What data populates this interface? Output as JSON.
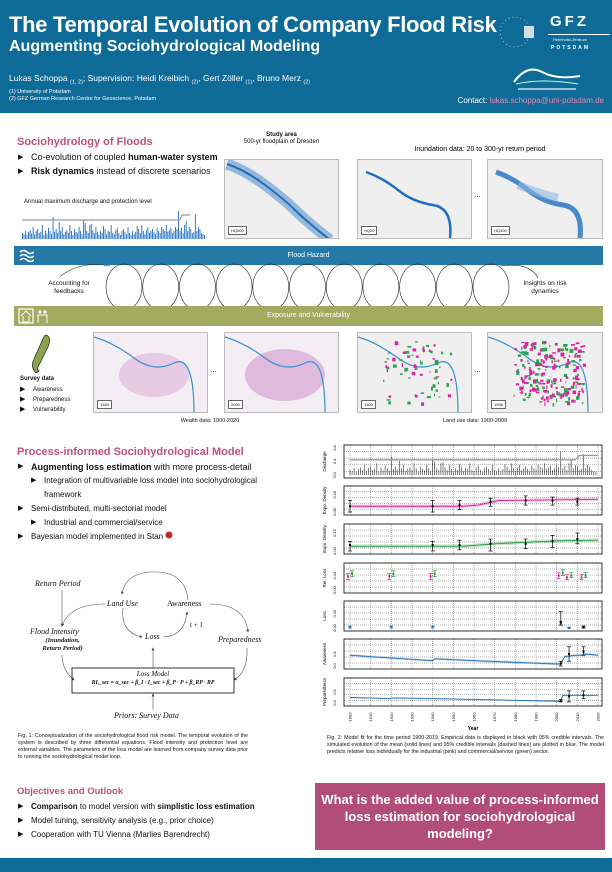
{
  "header": {
    "title": "The Temporal Evolution of Company Flood Risk",
    "subtitle": "Augmenting Sociohydrological Modeling",
    "authors": [
      {
        "name": "Lukas Schoppa",
        "aff": "(1, 2)"
      },
      {
        "name": "Heidi Kreibich",
        "aff": "(2)"
      },
      {
        "name": "Gert Zöller",
        "aff": "(1)"
      },
      {
        "name": "Bruno Merz",
        "aff": "(2)"
      }
    ],
    "supervision_label": "Supervision:",
    "affiliations": [
      "(1) University of Potsdam",
      "(2) GFZ German Research Centre for Geoscience, Potsdam"
    ],
    "contact_label": "Contact:",
    "contact_email": "lukas.schoppa@uni-potsdam.de",
    "logos": {
      "gfz": "GFZ",
      "gfz_sub1": "Helmholtz-Zentrum",
      "gfz_sub2": "POTSDAM"
    }
  },
  "section1": {
    "title": "Sociohydrology of Floods",
    "bullets": [
      {
        "pre": "Co-evolution of coupled ",
        "bold": "human-water system",
        "post": ""
      },
      {
        "pre": "",
        "bold": "Risk dynamics",
        "post": " instead of discrete scenarios"
      }
    ],
    "chart_label": "Annual maximum discharge and protection level",
    "study_area_title": "Study area",
    "study_area_sub": "500-yr floodplain of Dresden",
    "inundation_label": "Inundation data: 20 to 300-yr return period",
    "map_tags": [
      "HQ500",
      "HQ20",
      "HQ300"
    ],
    "ellipsis": "..."
  },
  "bands": {
    "hazard": "Flood Hazard",
    "exposure": "Exposure and Vulnerability",
    "left_note": "Accounting for feedbacks",
    "right_note": "Insights on risk dynamics"
  },
  "survey": {
    "title": "Survey data",
    "items": [
      "Awareness",
      "Preparedness",
      "Vulnerability"
    ]
  },
  "wealth": {
    "label": "Wealth data: 1900-2020",
    "tags": [
      "1940",
      "2000"
    ]
  },
  "landuse": {
    "label": "Land use data: 1900-2009",
    "tags": [
      "1900",
      "1998"
    ]
  },
  "section2": {
    "title": "Process-informed Sociohydrological Model",
    "bullets": [
      {
        "level": 0,
        "pre": "",
        "bold": "Augmenting loss estimation",
        "post": " with more process-detail"
      },
      {
        "level": 1,
        "pre": "Integration of multivariable loss model into sociohydrological framework",
        "bold": "",
        "post": ""
      },
      {
        "level": 0,
        "pre": "Semi-distributed, multi-sectorial model",
        "bold": "",
        "post": ""
      },
      {
        "level": 1,
        "pre": "Industrial and commercial/service",
        "bold": "",
        "post": ""
      },
      {
        "level": 0,
        "pre": "Bayesian model implemented in Stan",
        "bold": "",
        "post": ""
      }
    ]
  },
  "diagram": {
    "return_period": "Return Period",
    "land_use": "Land Use",
    "awareness": "Awareness",
    "t1": "t + 1",
    "flood_intensity": "Flood Intensity",
    "fi_sub1": "(Inundation,",
    "fi_sub2": "Return Period)",
    "loss": "Loss",
    "preparedness": "Preparedness",
    "loss_model": "Loss Model",
    "equation": "RL_sec = α_sec + β_I · I_sec + β_P · P + β_RP · RP",
    "priors": "Priors: Survey Data"
  },
  "fig1_caption": "Fig. 1: Conceptualization of the sociohydrological flood risk model. The temporal evolution of the system is described by three differential equations. Flood intensity and protection level are external variables. The parameters of the loss model are learned from company survey data prior to running the sociohydrological model loop.",
  "fig2_caption": "Fig. 2: Model fit for the time period 1900-2019. Empirical data is displayed in black with 95% credible intervals. The simulated evolution of the mean (solid lines) and 95% credible intervals (dashed lines) are plotted in blue. The model predicts relative loss individually for the industrial (pink) and commercial/service (green) sector.",
  "section3": {
    "title": "Objectives and Outlook",
    "bullets": [
      {
        "pre": "Comparison",
        "bold": "",
        "post": " to model version with ",
        "bold2": "simplistic loss estimation"
      },
      {
        "pre": "Model tuning, sensitivity analysis (e.g., prior choice)"
      },
      {
        "pre": "Cooperation with TU Vienna (Marlies Barendrecht)"
      }
    ]
  },
  "question": "What is the added value of process-informed loss estimation for sociohydrological modeling?",
  "colors": {
    "header": "#0e6a96",
    "accent": "#c0507f",
    "hazard": "#2479a6",
    "exposure": "#a2ab5f",
    "question": "#b24d7a",
    "industrial": "#d6249a",
    "commercial": "#1f9a3a",
    "model": "#1f6fc0"
  },
  "chart_data": {
    "type": "line",
    "xlabel": "Year",
    "xlim": [
      1900,
      2020
    ],
    "x_ticks": [
      1900,
      1910,
      1920,
      1930,
      1940,
      1950,
      1960,
      1970,
      1980,
      1990,
      2000,
      2010,
      2020
    ],
    "grid": true,
    "panels": [
      {
        "ylabel": "Discharge",
        "ylim": [
          0,
          0.8
        ],
        "yticks": [
          "0.0",
          "0.4",
          "0.8"
        ],
        "kind": "bars",
        "bars": [
          0.15,
          0.12,
          0.2,
          0.1,
          0.18,
          0.22,
          0.14,
          0.3,
          0.12,
          0.2,
          0.25,
          0.15,
          0.18,
          0.35,
          0.1,
          0.22,
          0.14,
          0.28,
          0.2,
          0.12,
          0.55,
          0.18,
          0.25,
          0.15,
          0.42,
          0.2,
          0.3,
          0.12,
          0.18,
          0.22,
          0.15,
          0.35,
          0.2,
          0.1,
          0.25,
          0.18,
          0.14,
          0.3,
          0.2,
          0.12,
          0.48,
          0.4,
          0.2,
          0.15,
          0.35,
          0.38,
          0.22,
          0.14,
          0.3,
          0.18,
          0.1,
          0.2,
          0.15,
          0.32,
          0.25,
          0.12,
          0.2,
          0.18,
          0.35,
          0.15,
          0.12,
          0.22,
          0.28,
          0.15,
          0.1,
          0.2,
          0.25,
          0.18,
          0.12,
          0.3,
          0.15,
          0.1,
          0.2,
          0.12,
          0.18,
          0.32,
          0.25,
          0.15,
          0.35,
          0.2,
          0.12,
          0.22,
          0.3,
          0.15,
          0.2,
          0.25,
          0.18,
          0.12,
          0.28,
          0.2,
          0.15,
          0.3,
          0.25,
          0.2,
          0.35,
          0.18,
          0.22,
          0.28,
          0.15,
          0.2,
          0.3,
          0.25,
          0.7,
          0.2,
          0.28,
          0.15,
          0.35,
          0.45,
          0.2,
          0.3,
          0.25,
          0.15,
          0.18,
          0.62,
          0.2,
          0.3,
          0.25,
          0.15,
          0.12,
          0.1
        ],
        "protection": [
          [
            1900,
            0.45
          ],
          [
            2009,
            0.45
          ],
          [
            2011,
            0.58
          ],
          [
            2020,
            0.58
          ]
        ]
      },
      {
        "ylabel": "Expo. Density",
        "ylim": [
          0,
          0.2
        ],
        "yticks": [
          "0.00",
          "0.15"
        ],
        "kind": "lines",
        "lines": [
          {
            "color": "#d6249a",
            "band": 0.015,
            "pts": [
              [
                1900,
                0.05
              ],
              [
                1955,
                0.05
              ],
              [
                1962,
                0.06
              ],
              [
                1972,
                0.1
              ],
              [
                2020,
                0.11
              ]
            ]
          }
        ],
        "obs": [
          {
            "color": "#000",
            "pts": [
              [
                1900,
                0.05,
                0.0,
                0.1
              ],
              [
                1940,
                0.05,
                0.0,
                0.1
              ],
              [
                1953,
                0.06,
                0.02,
                0.1
              ],
              [
                1968,
                0.09,
                0.05,
                0.12
              ],
              [
                1985,
                0.1,
                0.06,
                0.14
              ],
              [
                1998,
                0.1,
                0.06,
                0.13
              ],
              [
                2010,
                0.09,
                0.06,
                0.12
              ]
            ]
          }
        ]
      },
      {
        "ylabel": "Expo. Density",
        "ylim": [
          0,
          0.2
        ],
        "yticks": [
          "0.00",
          "0.15"
        ],
        "kind": "lines",
        "lines": [
          {
            "color": "#1f9a3a",
            "band": 0.015,
            "pts": [
              [
                1900,
                0.04
              ],
              [
                1955,
                0.04
              ],
              [
                1970,
                0.06
              ],
              [
                2000,
                0.085
              ],
              [
                2020,
                0.09
              ]
            ]
          }
        ],
        "obs": [
          {
            "color": "#000",
            "pts": [
              [
                1900,
                0.05,
                0.0,
                0.08
              ],
              [
                1940,
                0.05,
                0.0,
                0.08
              ],
              [
                1953,
                0.05,
                0.01,
                0.09
              ],
              [
                1968,
                0.06,
                0.0,
                0.1
              ],
              [
                1985,
                0.06,
                0.02,
                0.1
              ],
              [
                1998,
                0.08,
                0.03,
                0.13
              ],
              [
                2010,
                0.1,
                0.06,
                0.15
              ]
            ]
          }
        ]
      },
      {
        "ylabel": "Rel. Loss",
        "ylim": [
          0,
          0.25
        ],
        "yticks": [
          "0.00",
          "0.15"
        ],
        "kind": "obs",
        "obs": [
          {
            "color": "#d6249a",
            "pts": [
              [
                1899,
                0.14,
                0.11,
                0.17
              ],
              [
                1919,
                0.14,
                0.11,
                0.17
              ],
              [
                1939,
                0.14,
                0.11,
                0.17
              ],
              [
                2001,
                0.15,
                0.12,
                0.18
              ],
              [
                2005,
                0.13,
                0.11,
                0.16
              ],
              [
                2012,
                0.13,
                0.11,
                0.16
              ]
            ]
          },
          {
            "color": "#1f9a3a",
            "pts": [
              [
                1901,
                0.17,
                0.14,
                0.2
              ],
              [
                1921,
                0.17,
                0.14,
                0.2
              ],
              [
                1941,
                0.17,
                0.14,
                0.2
              ],
              [
                2003,
                0.18,
                0.15,
                0.21
              ],
              [
                2007,
                0.15,
                0.13,
                0.18
              ],
              [
                2014,
                0.15,
                0.13,
                0.18
              ]
            ]
          }
        ]
      },
      {
        "ylabel": "Loss",
        "ylim": [
          0,
          0.25
        ],
        "yticks": [
          "0.00",
          "0.15"
        ],
        "kind": "obs",
        "obs": [
          {
            "color": "#1f6fc0",
            "pts": [
              [
                1900,
                0.01,
                0.0,
                0.02
              ],
              [
                1920,
                0.01,
                0.0,
                0.02
              ],
              [
                1940,
                0.01,
                0.0,
                0.02
              ],
              [
                2002,
                0.05,
                0.03,
                0.07
              ],
              [
                2006,
                0.0,
                0.0,
                0.01
              ],
              [
                2013,
                0.01,
                0.0,
                0.02
              ]
            ]
          },
          {
            "color": "#000",
            "pts": [
              [
                2002,
                0.06,
                0.03,
                0.17
              ],
              [
                2013,
                0.01,
                0.0,
                0.02
              ]
            ]
          }
        ]
      },
      {
        "ylabel": "Awareness",
        "ylim": [
          0,
          1
        ],
        "yticks": [
          "0.0",
          "0.5"
        ],
        "kind": "lines",
        "lines": [
          {
            "color": "#1f6fc0",
            "band": 0.05,
            "pts": [
              [
                1900,
                0.45
              ],
              [
                1920,
                0.33
              ],
              [
                1940,
                0.22
              ],
              [
                1941,
                0.3
              ],
              [
                1960,
                0.22
              ],
              [
                2001,
                0.08
              ],
              [
                2002,
                0.1
              ],
              [
                2004,
                0.4
              ],
              [
                2010,
                0.45
              ],
              [
                2013,
                0.45
              ],
              [
                2014,
                0.5
              ],
              [
                2020,
                0.45
              ]
            ]
          }
        ],
        "obs": [
          {
            "color": "#000",
            "pts": [
              [
                2002,
                0.1,
                0.0,
                0.2
              ],
              [
                2006,
                0.5,
                0.2,
                0.8
              ],
              [
                2013,
                0.6,
                0.45,
                0.8
              ]
            ]
          }
        ]
      },
      {
        "ylabel": "Preparedness",
        "ylim": [
          0,
          1
        ],
        "yticks": [
          "0.0",
          "0.5"
        ],
        "kind": "lines",
        "lines": [
          {
            "color": "#1f6fc0",
            "band": 0.03,
            "pts": [
              [
                1900,
                0.25
              ],
              [
                1920,
                0.2
              ],
              [
                1921,
                0.23
              ],
              [
                1940,
                0.2
              ],
              [
                2001,
                0.08
              ],
              [
                2002,
                0.1
              ],
              [
                2003,
                0.35
              ],
              [
                2020,
                0.35
              ]
            ]
          }
        ],
        "obs": [
          {
            "color": "#000",
            "pts": [
              [
                2002,
                0.1,
                0.05,
                0.15
              ],
              [
                2006,
                0.3,
                0.05,
                0.55
              ],
              [
                2013,
                0.35,
                0.2,
                0.55
              ]
            ]
          }
        ]
      }
    ]
  }
}
